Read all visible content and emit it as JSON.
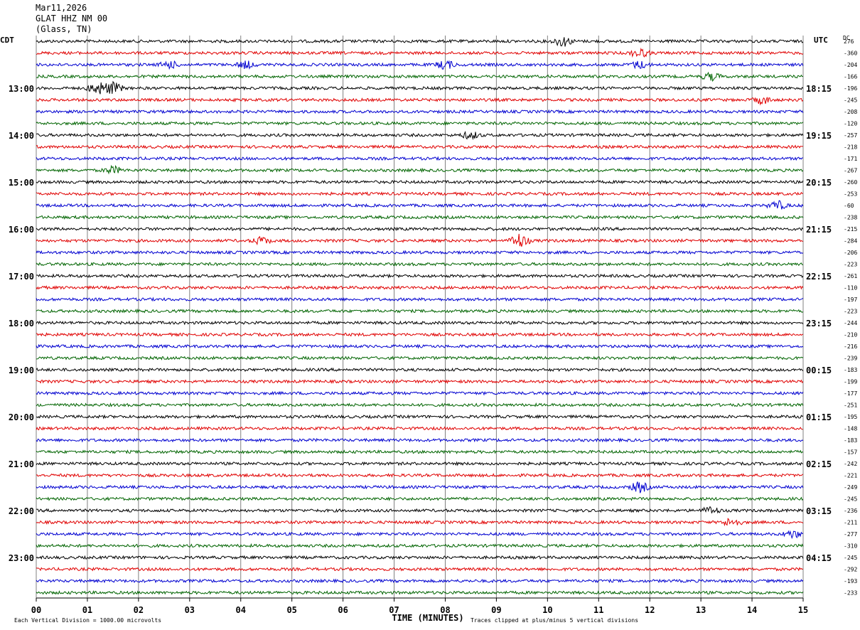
{
  "header": {
    "date": "Mar11,2026",
    "station": "GLAT HHZ NM 00",
    "location": "(Glass, TN)"
  },
  "left_zone_label": "CDT",
  "right_zone_label": "UTC",
  "dc_label": "DC",
  "colors": {
    "trace_cycle": [
      "#000000",
      "#e00000",
      "#0000d0",
      "#006400"
    ],
    "grid": "#808080",
    "axis": "#000000"
  },
  "chart_data": {
    "type": "line",
    "subtype": "helicorder",
    "x_axis": {
      "label": "TIME (MINUTES)",
      "range": [
        0,
        15
      ],
      "tick_labels": [
        "00",
        "01",
        "02",
        "03",
        "04",
        "05",
        "06",
        "07",
        "08",
        "09",
        "10",
        "11",
        "12",
        "13",
        "14",
        "15"
      ]
    },
    "left_time_labels": [
      "13:00",
      "14:00",
      "15:00",
      "16:00",
      "17:00",
      "18:00",
      "19:00",
      "20:00",
      "21:00",
      "22:00",
      "23:00"
    ],
    "right_time_labels": [
      "18:15",
      "19:15",
      "20:15",
      "21:15",
      "22:15",
      "23:15",
      "00:15",
      "01:15",
      "02:15",
      "03:15",
      "04:15"
    ],
    "first_labeled_row": 4,
    "rows_per_label": 4,
    "row_count": 48,
    "dc_offsets": [
      "276",
      "-360",
      "-204",
      "-166",
      "-196",
      "-245",
      "-208",
      "-120",
      "-257",
      "-218",
      "-171",
      "-267",
      "-260",
      "-253",
      "-60",
      "-238",
      "-215",
      "-284",
      "-206",
      "-223",
      "-261",
      "-110",
      "-197",
      "-223",
      "-244",
      "-210",
      "-216",
      "-239",
      "-183",
      "-199",
      "-177",
      "-251",
      "-195",
      "-148",
      "-183",
      "-157",
      "-242",
      "-221",
      "-249",
      "-245",
      "-236",
      "-211",
      "-277",
      "-310",
      "-245",
      "-292",
      "-193",
      "-233"
    ],
    "bursts": [
      {
        "row": 0,
        "minute": 10.3,
        "amp": 7
      },
      {
        "row": 1,
        "minute": 11.8,
        "amp": 6
      },
      {
        "row": 2,
        "minute": 2.6,
        "amp": 5
      },
      {
        "row": 2,
        "minute": 4.1,
        "amp": 5
      },
      {
        "row": 2,
        "minute": 8.0,
        "amp": 6
      },
      {
        "row": 2,
        "minute": 11.8,
        "amp": 5
      },
      {
        "row": 3,
        "minute": 13.2,
        "amp": 5
      },
      {
        "row": 4,
        "minute": 1.2,
        "amp": 9
      },
      {
        "row": 4,
        "minute": 1.5,
        "amp": 8
      },
      {
        "row": 5,
        "minute": 14.2,
        "amp": 5
      },
      {
        "row": 8,
        "minute": 8.5,
        "amp": 5
      },
      {
        "row": 11,
        "minute": 1.5,
        "amp": 5
      },
      {
        "row": 14,
        "minute": 14.5,
        "amp": 6
      },
      {
        "row": 17,
        "minute": 9.45,
        "amp": 10
      },
      {
        "row": 17,
        "minute": 4.4,
        "amp": 5
      },
      {
        "row": 38,
        "minute": 11.8,
        "amp": 7
      },
      {
        "row": 40,
        "minute": 13.2,
        "amp": 5
      },
      {
        "row": 41,
        "minute": 13.6,
        "amp": 6
      },
      {
        "row": 42,
        "minute": 14.8,
        "amp": 5
      }
    ],
    "footer_left": "Each Vertical Division = 1000.00 microvolts",
    "footer_right": "Traces clipped at plus/minus 5 vertical divisions"
  }
}
